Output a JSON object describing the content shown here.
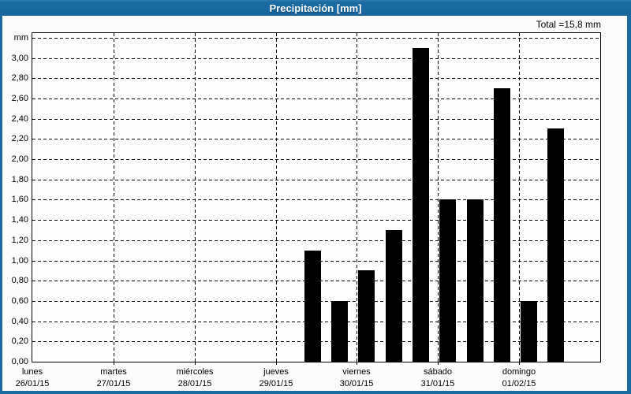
{
  "window": {
    "title": "Precipitación [mm]"
  },
  "colors": {
    "frame_blue": "#1b6ba3",
    "title_text": "#ffffff",
    "panel_bg": "#fcfcfc",
    "plot_bg": "#fefefe",
    "bar_fill": "#000000",
    "grid_line": "#000000",
    "label_text": "#000000"
  },
  "chart_data": {
    "type": "bar",
    "title": "Precipitación [mm]",
    "total_label": "Total =15,8 mm",
    "total_value_mm": 15.8,
    "unit_label": "mm",
    "ylim": [
      0,
      3.25
    ],
    "grid": "dashed",
    "legend": "none",
    "y_ticks": [
      {
        "value": 0.0,
        "label": "0,00"
      },
      {
        "value": 0.2,
        "label": "0,20"
      },
      {
        "value": 0.4,
        "label": "0,40"
      },
      {
        "value": 0.6,
        "label": "0,60"
      },
      {
        "value": 0.8,
        "label": "0,80"
      },
      {
        "value": 1.0,
        "label": "1,00"
      },
      {
        "value": 1.2,
        "label": "1,20"
      },
      {
        "value": 1.4,
        "label": "1,40"
      },
      {
        "value": 1.6,
        "label": "1,60"
      },
      {
        "value": 1.8,
        "label": "1,80"
      },
      {
        "value": 2.0,
        "label": "2,00"
      },
      {
        "value": 2.2,
        "label": "2,20"
      },
      {
        "value": 2.4,
        "label": "2,40"
      },
      {
        "value": 2.6,
        "label": "2,60"
      },
      {
        "value": 2.8,
        "label": "2,80"
      },
      {
        "value": 3.0,
        "label": "3,00"
      },
      {
        "value": 3.2,
        "label": "mm"
      }
    ],
    "x_days": [
      {
        "name": "lunes",
        "date": "26/01/15"
      },
      {
        "name": "martes",
        "date": "27/01/15"
      },
      {
        "name": "miércoles",
        "date": "28/01/15"
      },
      {
        "name": "jueves",
        "date": "29/01/15"
      },
      {
        "name": "viernes",
        "date": "30/01/15"
      },
      {
        "name": "sábado",
        "date": "31/01/15"
      },
      {
        "name": "domingo",
        "date": "01/02/15"
      }
    ],
    "slots_per_day": 3,
    "bars": [
      {
        "day": "jueves",
        "day_index": 3,
        "slot": 1,
        "value_mm": 1.1
      },
      {
        "day": "jueves",
        "day_index": 3,
        "slot": 2,
        "value_mm": 0.6
      },
      {
        "day": "viernes",
        "day_index": 4,
        "slot": 0,
        "value_mm": 0.9
      },
      {
        "day": "viernes",
        "day_index": 4,
        "slot": 1,
        "value_mm": 1.3
      },
      {
        "day": "viernes",
        "day_index": 4,
        "slot": 2,
        "value_mm": 3.1
      },
      {
        "day": "sábado",
        "day_index": 5,
        "slot": 0,
        "value_mm": 1.6
      },
      {
        "day": "sábado",
        "day_index": 5,
        "slot": 1,
        "value_mm": 1.6
      },
      {
        "day": "sábado",
        "day_index": 5,
        "slot": 2,
        "value_mm": 2.7
      },
      {
        "day": "domingo",
        "day_index": 6,
        "slot": 0,
        "value_mm": 0.6
      },
      {
        "day": "domingo",
        "day_index": 6,
        "slot": 1,
        "value_mm": 2.3
      }
    ]
  }
}
